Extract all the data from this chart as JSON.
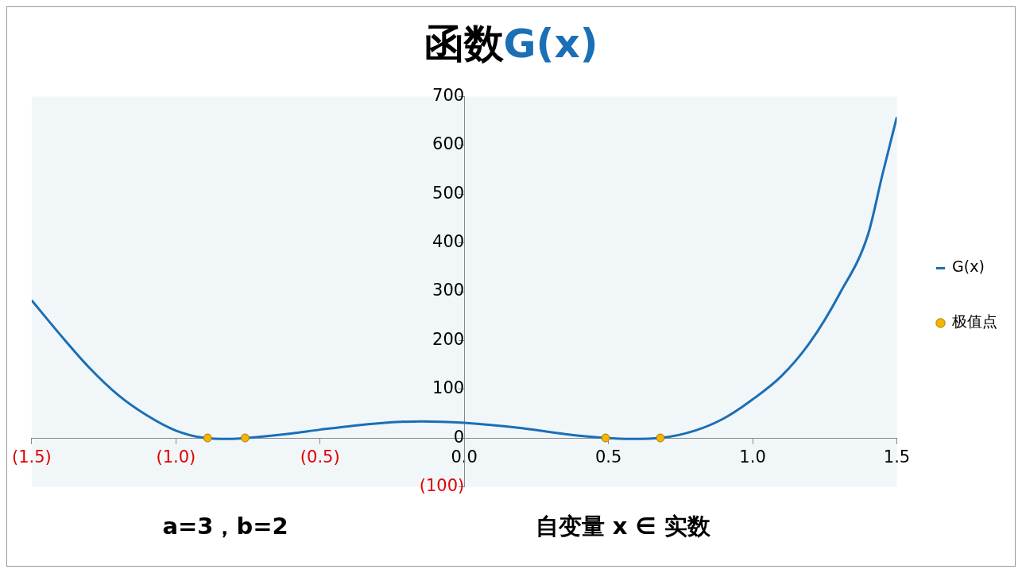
{
  "chart_data": {
    "type": "line",
    "title": "函数G(x)",
    "xlim": [
      -1.5,
      1.5
    ],
    "ylim": [
      -100,
      700
    ],
    "xticks": [
      {
        "value": -1.5,
        "label": "(1.5)"
      },
      {
        "value": -1,
        "label": "(1.0)"
      },
      {
        "value": -0.5,
        "label": "(0.5)"
      },
      {
        "value": 0,
        "label": "0.0"
      },
      {
        "value": 0.5,
        "label": "0.5"
      },
      {
        "value": 1,
        "label": "1.0"
      },
      {
        "value": 1.5,
        "label": "1.5"
      }
    ],
    "yticks": [
      {
        "value": -100,
        "label": "(100)"
      },
      0,
      100,
      200,
      300,
      400,
      500,
      600,
      700
    ],
    "grid": false,
    "legend": "right",
    "series": [
      {
        "name": "G(x)",
        "color": "#1a6fb5",
        "marker": "none",
        "line_style": "solid",
        "x": [
          -1.5,
          -1.4,
          -1.3,
          -1.2,
          -1.1,
          -1.0,
          -0.9,
          -0.82,
          -0.75,
          -0.6,
          -0.5,
          -0.3,
          -0.15,
          0,
          0.2,
          0.35,
          0.49,
          0.58,
          0.68,
          0.8,
          0.9,
          1.0,
          1.1,
          1.2,
          1.3,
          1.4,
          1.45,
          1.5
        ],
        "values": [
          282,
          211,
          144,
          88,
          46,
          15,
          0,
          -2,
          0,
          9,
          17,
          30,
          34,
          31,
          20,
          8,
          0,
          -2,
          0,
          15,
          40,
          79,
          127,
          197,
          294,
          417,
          540,
          658
        ]
      },
      {
        "name": "极值点",
        "type": "scatter",
        "color": "#f5b400",
        "marker": "circle",
        "x": [
          -0.89,
          -0.76,
          0.49,
          0.68
        ],
        "values": [
          0,
          0,
          0,
          0
        ]
      }
    ],
    "annotations": [
      "a=3，b=2",
      "自变量 x ∈ 实数"
    ]
  }
}
